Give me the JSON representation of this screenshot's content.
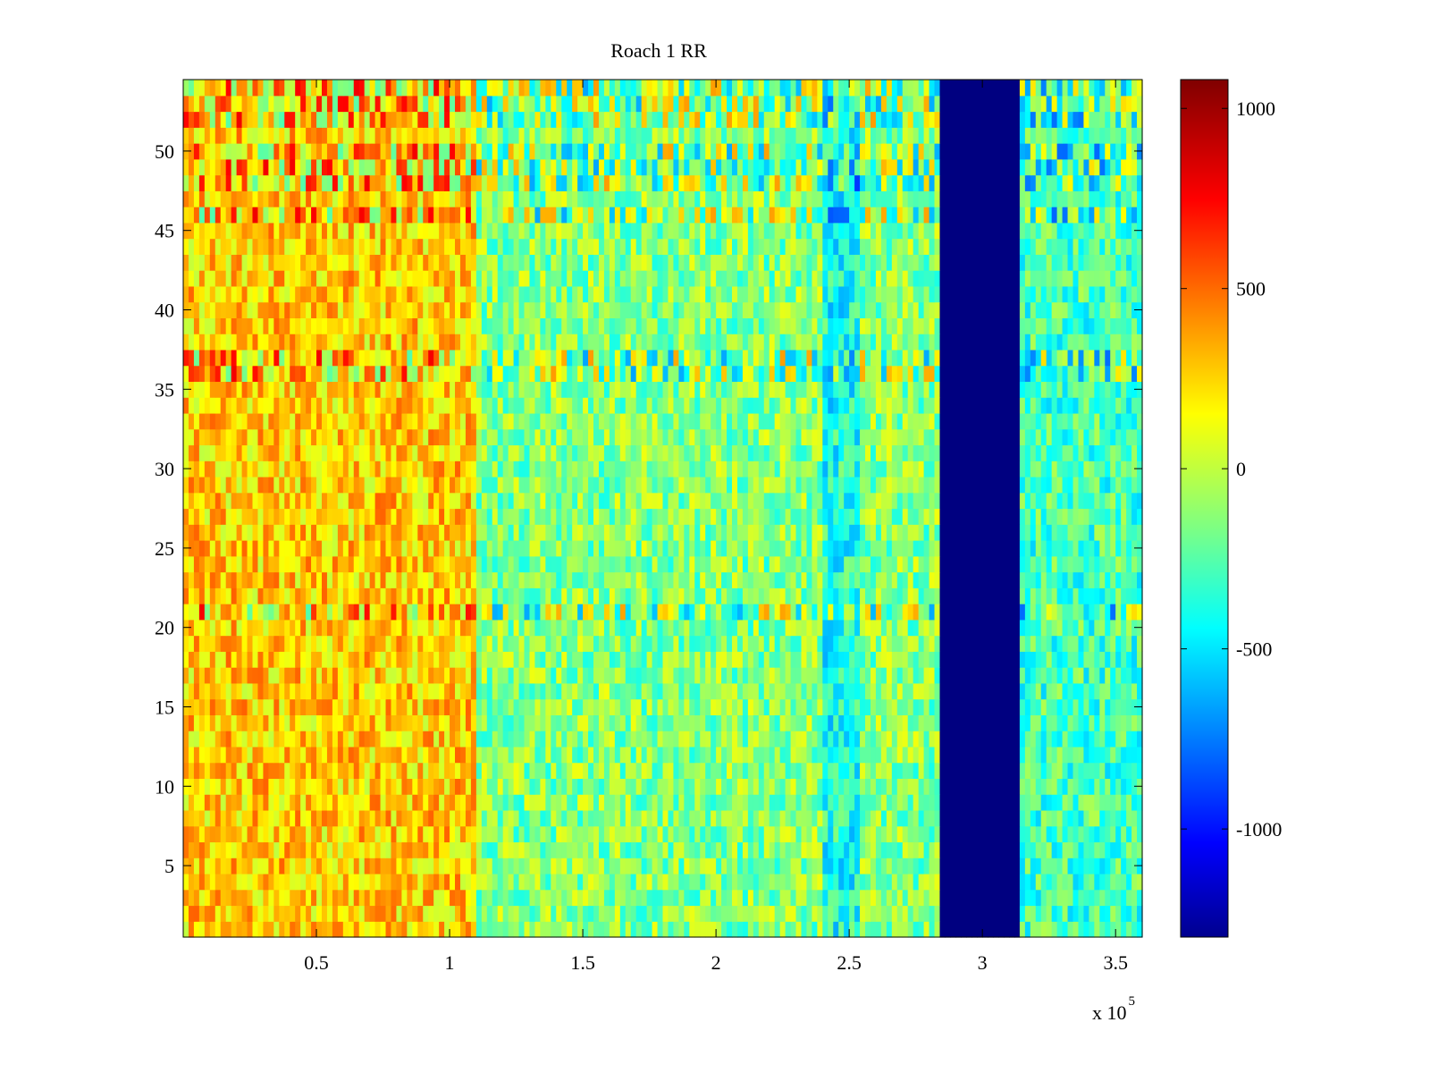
{
  "chart_data": {
    "type": "heatmap",
    "title": "Roach 1 RR",
    "xlabel": "",
    "ylabel": "",
    "x_exponent_label": "x 10",
    "x_exponent_power": "5",
    "xlim": [
      0,
      3.6
    ],
    "ylim": [
      0.5,
      54.5
    ],
    "x_ticks": [
      0.5,
      1,
      1.5,
      2,
      2.5,
      3,
      3.5
    ],
    "x_tick_labels": [
      "0.5",
      "1",
      "1.5",
      "2",
      "2.5",
      "3",
      "3.5"
    ],
    "y_ticks": [
      5,
      10,
      15,
      20,
      25,
      30,
      35,
      40,
      45,
      50
    ],
    "y_tick_labels": [
      "5",
      "10",
      "15",
      "20",
      "25",
      "30",
      "35",
      "40",
      "45",
      "50"
    ],
    "n_rows": 54,
    "colormap": "jet",
    "clim": [
      -1300,
      1080
    ],
    "colorbar": {
      "ticks": [
        1000,
        500,
        0,
        -500,
        -1000
      ],
      "tick_labels": [
        "1000",
        "500",
        "0",
        "-500",
        "-1000"
      ],
      "location": "right"
    },
    "x_segments": [
      {
        "x_start": 0,
        "x_end": 1.1,
        "approx_value": 300
      },
      {
        "x_start": 1.1,
        "x_end": 2.4,
        "approx_value": -100
      },
      {
        "x_start": 2.4,
        "x_end": 2.55,
        "approx_value": -350
      },
      {
        "x_start": 2.55,
        "x_end": 2.85,
        "approx_value": -100
      },
      {
        "x_start": 2.85,
        "x_end": 3.15,
        "approx_value": -1300
      },
      {
        "x_start": 3.15,
        "x_end": 3.6,
        "approx_value": -250
      }
    ],
    "noisy_rows": [
      21,
      36,
      37,
      46,
      48,
      49,
      50,
      52,
      53,
      54
    ],
    "grid": false
  }
}
